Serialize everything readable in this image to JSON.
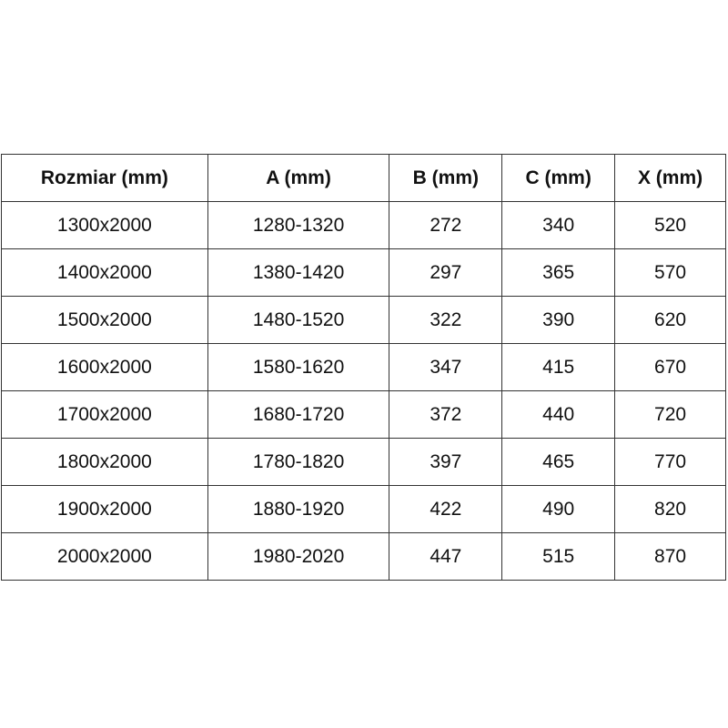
{
  "table": {
    "headers": [
      "Rozmiar (mm)",
      "A (mm)",
      "B (mm)",
      "C (mm)",
      "X (mm)"
    ],
    "rows": [
      [
        "1300x2000",
        "1280-1320",
        "272",
        "340",
        "520"
      ],
      [
        "1400x2000",
        "1380-1420",
        "297",
        "365",
        "570"
      ],
      [
        "1500x2000",
        "1480-1520",
        "322",
        "390",
        "620"
      ],
      [
        "1600x2000",
        "1580-1620",
        "347",
        "415",
        "670"
      ],
      [
        "1700x2000",
        "1680-1720",
        "372",
        "440",
        "720"
      ],
      [
        "1800x2000",
        "1780-1820",
        "397",
        "465",
        "770"
      ],
      [
        "1900x2000",
        "1880-1920",
        "422",
        "490",
        "820"
      ],
      [
        "2000x2000",
        "1980-2020",
        "447",
        "515",
        "870"
      ]
    ]
  }
}
